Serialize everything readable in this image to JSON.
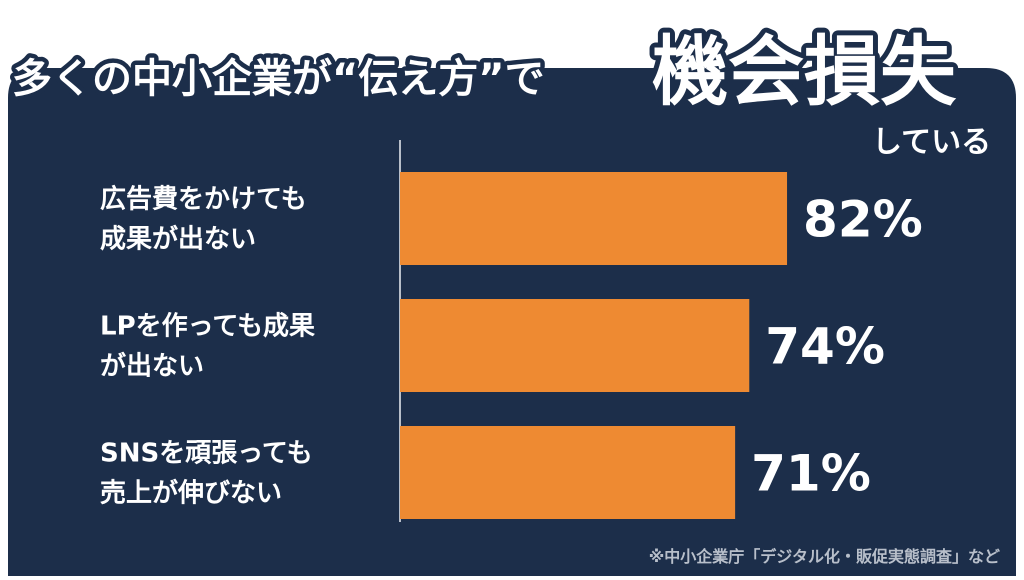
{
  "chart_data": {
    "type": "bar",
    "orientation": "horizontal",
    "title": "多くの中小企業が“伝え方”で",
    "title_emphasis": "機会損失",
    "title_suffix": "している",
    "categories": [
      "広告費をかけても\n成果が出ない",
      "LPを作っても成果\nが出ない",
      "SNSを頑張っても\n売上が伸びない"
    ],
    "values": [
      82,
      74,
      71
    ],
    "value_labels": [
      "82%",
      "74%",
      "71%"
    ],
    "color": "#ee8a32",
    "xlim": [
      0,
      100
    ],
    "footnote": "※中小企業庁「デジタル化・販促実態調査」など"
  }
}
